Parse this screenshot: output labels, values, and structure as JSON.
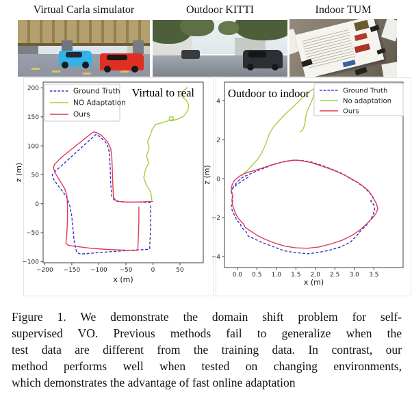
{
  "page": {
    "background": "#ffffff"
  },
  "top_row": {
    "panels": [
      {
        "title": "Virtual Carla simulator"
      },
      {
        "title": "Outdoor KITTI"
      },
      {
        "title": "Indoor TUM"
      }
    ]
  },
  "caption": {
    "label": "Figure 1.",
    "lines": [
      "Figure 1. We demonstrate the domain shift problem for self-",
      "supervised VO. Previous methods fail to generalize when the",
      "test data are different from the training data.  In contrast, our",
      "method performs well when tested on changing environments,",
      "which demonstrates the advantage of fast online adaptation"
    ]
  },
  "colors": {
    "ground_truth": "#3232c8",
    "no_adaptation": "#a6cf3f",
    "ours": "#e03a55",
    "spine": "#3c3c3c",
    "tick_label": "#222222"
  },
  "chart_data": [
    {
      "type": "line",
      "title": "Virtual to real",
      "xlabel": "x (m)",
      "ylabel": "z (m)",
      "xlim": [
        -203,
        93
      ],
      "ylim": [
        -102,
        210
      ],
      "grid": false,
      "legend_position": "top-left",
      "xticks": [
        {
          "v": -200,
          "l": "−200"
        },
        {
          "v": -150,
          "l": "−150"
        },
        {
          "v": -100,
          "l": "−100"
        },
        {
          "v": -50,
          "l": "−50"
        },
        {
          "v": 0,
          "l": "0"
        },
        {
          "v": 50,
          "l": "50"
        }
      ],
      "yticks": [
        {
          "v": 200,
          "l": "200"
        },
        {
          "v": 150,
          "l": "150"
        },
        {
          "v": 100,
          "l": "100"
        },
        {
          "v": 50,
          "l": "50"
        },
        {
          "v": 0,
          "l": "0"
        },
        {
          "v": -50,
          "l": "−50"
        },
        {
          "v": -100,
          "l": "−100"
        }
      ],
      "series": [
        {
          "name": "Ground Truth",
          "color": "#3232c8",
          "dashed": true,
          "points": [
            [
              -4,
              2
            ],
            [
              -30,
              3
            ],
            [
              -55,
              3
            ],
            [
              -66,
              4
            ],
            [
              -72,
              7
            ],
            [
              -76,
              13
            ],
            [
              -78,
              35
            ],
            [
              -79,
              60
            ],
            [
              -80,
              82
            ],
            [
              -82,
              96
            ],
            [
              -88,
              107
            ],
            [
              -97,
              115
            ],
            [
              -105,
              120
            ],
            [
              -125,
              103
            ],
            [
              -145,
              86
            ],
            [
              -165,
              69
            ],
            [
              -183,
              54
            ],
            [
              -186,
              50
            ],
            [
              -184,
              43
            ],
            [
              -176,
              32
            ],
            [
              -166,
              20
            ],
            [
              -158,
              9
            ],
            [
              -153,
              -6
            ],
            [
              -150,
              -22
            ],
            [
              -148,
              -42
            ],
            [
              -146,
              -62
            ],
            [
              -143,
              -76
            ],
            [
              -141,
              -84
            ],
            [
              -134,
              -87
            ],
            [
              -120,
              -86
            ],
            [
              -95,
              -84
            ],
            [
              -65,
              -82
            ],
            [
              -35,
              -80
            ],
            [
              -10,
              -79
            ],
            [
              -6,
              -78
            ],
            [
              -5,
              -55
            ],
            [
              -4,
              -30
            ],
            [
              -4,
              -8
            ],
            [
              -4,
              0
            ]
          ]
        },
        {
          "name": "NO Adaptation",
          "color": "#a6cf3f",
          "dashed": false,
          "points": [
            [
              -2,
              6
            ],
            [
              -4,
              20
            ],
            [
              -12,
              32
            ],
            [
              -17,
              45
            ],
            [
              -14,
              58
            ],
            [
              -8,
              70
            ],
            [
              -12,
              83
            ],
            [
              -7,
              96
            ],
            [
              -10,
              107
            ],
            [
              -5,
              118
            ],
            [
              -2,
              127
            ],
            [
              2,
              133
            ],
            [
              5,
              137
            ],
            [
              14,
              139
            ],
            [
              24,
              142
            ],
            [
              33,
              144
            ],
            [
              38,
              146
            ],
            [
              37,
              150
            ],
            [
              31,
              150
            ],
            [
              30,
              146
            ],
            [
              34,
              143
            ],
            [
              45,
              146
            ],
            [
              55,
              150
            ],
            [
              61,
              156
            ],
            [
              65,
              163
            ],
            [
              66,
              170
            ],
            [
              62,
              178
            ],
            [
              55,
              184
            ],
            [
              52,
              188
            ],
            [
              55,
              194
            ],
            [
              60,
              198
            ],
            [
              64,
              201
            ]
          ]
        },
        {
          "name": "Ours",
          "color": "#e03a55",
          "dashed": false,
          "points": [
            [
              0,
              4
            ],
            [
              -25,
              3
            ],
            [
              -50,
              3
            ],
            [
              -63,
              4
            ],
            [
              -69,
              6
            ],
            [
              -73,
              11
            ],
            [
              -74,
              30
            ],
            [
              -75,
              55
            ],
            [
              -76,
              80
            ],
            [
              -78,
              95
            ],
            [
              -84,
              107
            ],
            [
              -94,
              117
            ],
            [
              -104,
              123
            ],
            [
              -110,
              124
            ],
            [
              -128,
              111
            ],
            [
              -148,
              96
            ],
            [
              -168,
              81
            ],
            [
              -182,
              68
            ],
            [
              -184,
              62
            ],
            [
              -180,
              52
            ],
            [
              -171,
              38
            ],
            [
              -163,
              26
            ],
            [
              -159,
              14
            ],
            [
              -158,
              -5
            ],
            [
              -158,
              -28
            ],
            [
              -159,
              -48
            ],
            [
              -160,
              -62
            ],
            [
              -161,
              -68
            ],
            [
              -156,
              -72
            ],
            [
              -140,
              -74
            ],
            [
              -115,
              -77
            ],
            [
              -85,
              -79
            ],
            [
              -55,
              -80
            ],
            [
              -32,
              -81
            ],
            [
              -28,
              -80
            ],
            [
              -27,
              -58
            ],
            [
              -26,
              -32
            ],
            [
              -26,
              -12
            ],
            [
              -26,
              -5
            ]
          ]
        }
      ]
    },
    {
      "type": "line",
      "title": "Outdoor to indoor",
      "xlabel": "x (m)",
      "ylabel": "z (m)",
      "xlim": [
        -0.33,
        4.25
      ],
      "ylim": [
        -4.56,
        4.95
      ],
      "grid": false,
      "legend_position": "top-right",
      "xticks": [
        {
          "v": 0.0,
          "l": "0.0"
        },
        {
          "v": 0.5,
          "l": "0.5"
        },
        {
          "v": 1.0,
          "l": "1.0"
        },
        {
          "v": 1.5,
          "l": "1.5"
        },
        {
          "v": 2.0,
          "l": "2.0"
        },
        {
          "v": 2.5,
          "l": "2.5"
        },
        {
          "v": 3.0,
          "l": "3.0"
        },
        {
          "v": 3.5,
          "l": "3.5"
        }
      ],
      "yticks": [
        {
          "v": 4,
          "l": "4"
        },
        {
          "v": 2,
          "l": "2"
        },
        {
          "v": 0,
          "l": "0"
        },
        {
          "v": -2,
          "l": "−2"
        },
        {
          "v": -4,
          "l": "−4"
        }
      ],
      "series": [
        {
          "name": "Ground Truth",
          "color": "#3232c8",
          "dashed": true,
          "points": [
            [
              0.28,
              0.08
            ],
            [
              0.12,
              -0.12
            ],
            [
              -0.02,
              -0.32
            ],
            [
              -0.13,
              -0.52
            ],
            [
              -0.16,
              -0.65
            ],
            [
              -0.13,
              -0.9
            ],
            [
              -0.12,
              -1.15
            ],
            [
              -0.16,
              -1.45
            ],
            [
              -0.12,
              -1.7
            ],
            [
              -0.05,
              -1.95
            ],
            [
              -0.02,
              -2.15
            ],
            [
              0.08,
              -2.3
            ],
            [
              0.1,
              -2.5
            ],
            [
              0.22,
              -2.7
            ],
            [
              0.28,
              -2.95
            ],
            [
              0.45,
              -3.1
            ],
            [
              0.6,
              -3.25
            ],
            [
              0.8,
              -3.4
            ],
            [
              1.0,
              -3.55
            ],
            [
              1.2,
              -3.7
            ],
            [
              1.45,
              -3.78
            ],
            [
              1.8,
              -3.85
            ],
            [
              2.1,
              -3.78
            ],
            [
              2.4,
              -3.65
            ],
            [
              2.65,
              -3.5
            ],
            [
              2.9,
              -3.25
            ],
            [
              3.05,
              -2.95
            ],
            [
              3.15,
              -2.7
            ],
            [
              3.3,
              -2.4
            ],
            [
              3.42,
              -2.1
            ],
            [
              3.48,
              -1.85
            ],
            [
              3.52,
              -1.6
            ],
            [
              3.5,
              -1.35
            ],
            [
              3.42,
              -1.15
            ],
            [
              3.48,
              -0.95
            ],
            [
              3.38,
              -0.7
            ],
            [
              3.25,
              -0.45
            ],
            [
              3.08,
              -0.2
            ],
            [
              2.9,
              0.0
            ],
            [
              2.7,
              0.25
            ],
            [
              2.5,
              0.42
            ],
            [
              2.3,
              0.58
            ],
            [
              2.1,
              0.72
            ],
            [
              1.9,
              0.85
            ],
            [
              1.7,
              0.92
            ],
            [
              1.5,
              0.95
            ],
            [
              1.3,
              0.9
            ],
            [
              1.1,
              0.82
            ],
            [
              0.9,
              0.7
            ],
            [
              0.7,
              0.55
            ],
            [
              0.5,
              0.4
            ],
            [
              0.3,
              0.22
            ],
            [
              0.12,
              0.05
            ],
            [
              -0.02,
              -0.2
            ],
            [
              -0.1,
              -0.42
            ],
            [
              -0.15,
              -0.6
            ]
          ]
        },
        {
          "name": "No adaptation",
          "color": "#a6cf3f",
          "dashed": false,
          "points": [
            [
              0.1,
              0.15
            ],
            [
              0.22,
              0.35
            ],
            [
              0.35,
              0.62
            ],
            [
              0.5,
              0.95
            ],
            [
              0.62,
              1.3
            ],
            [
              0.7,
              1.65
            ],
            [
              0.76,
              1.95
            ],
            [
              0.82,
              2.3
            ],
            [
              0.93,
              2.65
            ],
            [
              1.08,
              3.0
            ],
            [
              1.25,
              3.35
            ],
            [
              1.45,
              3.72
            ],
            [
              1.62,
              4.05
            ],
            [
              1.75,
              4.3
            ],
            [
              1.87,
              4.5
            ],
            [
              1.95,
              4.6
            ],
            [
              1.97,
              4.5
            ],
            [
              1.95,
              4.2
            ],
            [
              1.88,
              3.85
            ],
            [
              1.8,
              3.5
            ],
            [
              1.75,
              3.15
            ],
            [
              1.73,
              2.8
            ],
            [
              1.68,
              2.5
            ],
            [
              1.6,
              2.38
            ]
          ]
        },
        {
          "name": "Ours",
          "color": "#e03a55",
          "dashed": false,
          "points": [
            [
              0.2,
              0.28
            ],
            [
              0.05,
              0.12
            ],
            [
              -0.08,
              -0.1
            ],
            [
              -0.14,
              -0.35
            ],
            [
              -0.16,
              -0.6
            ],
            [
              -0.11,
              -0.85
            ],
            [
              -0.14,
              -1.1
            ],
            [
              -0.12,
              -1.4
            ],
            [
              -0.07,
              -1.65
            ],
            [
              -0.02,
              -1.9
            ],
            [
              0.05,
              -2.1
            ],
            [
              0.15,
              -2.3
            ],
            [
              0.2,
              -2.5
            ],
            [
              0.35,
              -2.7
            ],
            [
              0.5,
              -2.9
            ],
            [
              0.7,
              -3.1
            ],
            [
              0.95,
              -3.3
            ],
            [
              1.2,
              -3.45
            ],
            [
              1.5,
              -3.55
            ],
            [
              1.8,
              -3.57
            ],
            [
              2.1,
              -3.5
            ],
            [
              2.4,
              -3.35
            ],
            [
              2.7,
              -3.15
            ],
            [
              2.95,
              -2.9
            ],
            [
              3.15,
              -2.62
            ],
            [
              3.3,
              -2.35
            ],
            [
              3.45,
              -2.05
            ],
            [
              3.55,
              -1.8
            ],
            [
              3.6,
              -1.55
            ],
            [
              3.57,
              -1.3
            ],
            [
              3.5,
              -1.05
            ],
            [
              3.45,
              -0.85
            ],
            [
              3.35,
              -0.6
            ],
            [
              3.2,
              -0.35
            ],
            [
              3.05,
              -0.15
            ],
            [
              2.85,
              0.08
            ],
            [
              2.62,
              0.3
            ],
            [
              2.4,
              0.48
            ],
            [
              2.15,
              0.65
            ],
            [
              1.9,
              0.82
            ],
            [
              1.65,
              0.92
            ],
            [
              1.45,
              0.95
            ],
            [
              1.2,
              0.88
            ],
            [
              0.95,
              0.75
            ],
            [
              0.72,
              0.6
            ],
            [
              0.5,
              0.45
            ],
            [
              0.32,
              0.35
            ],
            [
              0.2,
              0.28
            ]
          ]
        }
      ]
    }
  ]
}
